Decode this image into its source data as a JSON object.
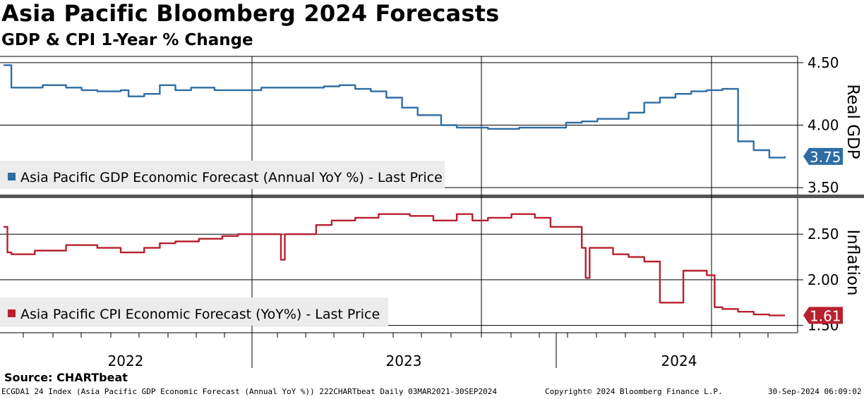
{
  "title": "Asia Pacific Bloomberg 2024 Forecasts",
  "subtitle": "GDP & CPI 1-Year % Change",
  "source": "Source: CHARTbeat",
  "footer": {
    "left": "ECGDA1 24 Index (Asia Pacific GDP Economic Forecast (Annual YoY %)) 222CHARTbeat  Daily 03MAR2021-30SEP2024",
    "middle": "Copyright© 2024 Bloomberg Finance L.P.",
    "right": "30-Sep-2024 06:09:02"
  },
  "chart_data": [
    {
      "type": "line",
      "panel": "top",
      "ylabel": "Real GDP",
      "ylim": [
        3.45,
        4.55
      ],
      "yticks": [
        "4.50",
        "4.00",
        "3.50"
      ],
      "last_value": "3.75",
      "color": "#2e6da4",
      "series": [
        {
          "name": "Asia Pacific GDP Economic Forecast (Annual YoY %) - Last Price",
          "x": [
            0.0,
            0.01,
            0.03,
            0.05,
            0.08,
            0.1,
            0.12,
            0.15,
            0.16,
            0.18,
            0.2,
            0.22,
            0.24,
            0.25,
            0.27,
            0.3,
            0.33,
            0.36,
            0.38,
            0.41,
            0.43,
            0.45,
            0.47,
            0.49,
            0.51,
            0.53,
            0.56,
            0.58,
            0.6,
            0.62,
            0.64,
            0.66,
            0.68,
            0.7,
            0.72,
            0.74,
            0.76,
            0.78,
            0.8,
            0.82,
            0.84,
            0.86,
            0.88,
            0.9,
            0.92,
            0.94,
            0.96,
            0.98,
            1.0
          ],
          "y": [
            4.48,
            4.3,
            4.3,
            4.32,
            4.3,
            4.28,
            4.27,
            4.28,
            4.23,
            4.25,
            4.32,
            4.28,
            4.3,
            4.3,
            4.28,
            4.28,
            4.3,
            4.3,
            4.3,
            4.31,
            4.32,
            4.29,
            4.27,
            4.22,
            4.14,
            4.08,
            4.0,
            3.98,
            3.98,
            3.97,
            3.97,
            3.98,
            3.98,
            3.98,
            4.02,
            4.03,
            4.05,
            4.05,
            4.1,
            4.18,
            4.22,
            4.25,
            4.27,
            4.28,
            4.29,
            3.87,
            3.8,
            3.74,
            3.75
          ]
        }
      ]
    },
    {
      "type": "line",
      "panel": "bottom",
      "ylabel": "Inflation",
      "ylim": [
        1.42,
        2.88
      ],
      "yticks": [
        "2.50",
        "2.00",
        "1.50"
      ],
      "last_value": "1.61",
      "color": "#b8202e",
      "series": [
        {
          "name": "Asia Pacific CPI Economic Forecast (YoY%) - Last Price",
          "x": [
            0.0,
            0.005,
            0.01,
            0.04,
            0.08,
            0.12,
            0.15,
            0.18,
            0.2,
            0.22,
            0.25,
            0.28,
            0.3,
            0.33,
            0.35,
            0.355,
            0.36,
            0.38,
            0.4,
            0.42,
            0.45,
            0.48,
            0.5,
            0.52,
            0.55,
            0.58,
            0.6,
            0.62,
            0.65,
            0.68,
            0.7,
            0.73,
            0.74,
            0.745,
            0.75,
            0.78,
            0.8,
            0.82,
            0.84,
            0.86,
            0.87,
            0.9,
            0.91,
            0.92,
            0.94,
            0.96,
            0.98,
            1.0
          ],
          "y": [
            2.58,
            2.3,
            2.28,
            2.32,
            2.38,
            2.35,
            2.3,
            2.35,
            2.4,
            2.42,
            2.45,
            2.48,
            2.5,
            2.5,
            2.5,
            2.22,
            2.5,
            2.5,
            2.6,
            2.65,
            2.68,
            2.72,
            2.72,
            2.7,
            2.65,
            2.72,
            2.65,
            2.68,
            2.72,
            2.68,
            2.58,
            2.58,
            2.35,
            2.02,
            2.35,
            2.28,
            2.25,
            2.2,
            1.75,
            1.75,
            2.1,
            2.05,
            1.7,
            1.68,
            1.65,
            1.62,
            1.61,
            1.61
          ]
        }
      ]
    }
  ],
  "x_axis": {
    "years": [
      "2022",
      "2023",
      "2024"
    ]
  }
}
